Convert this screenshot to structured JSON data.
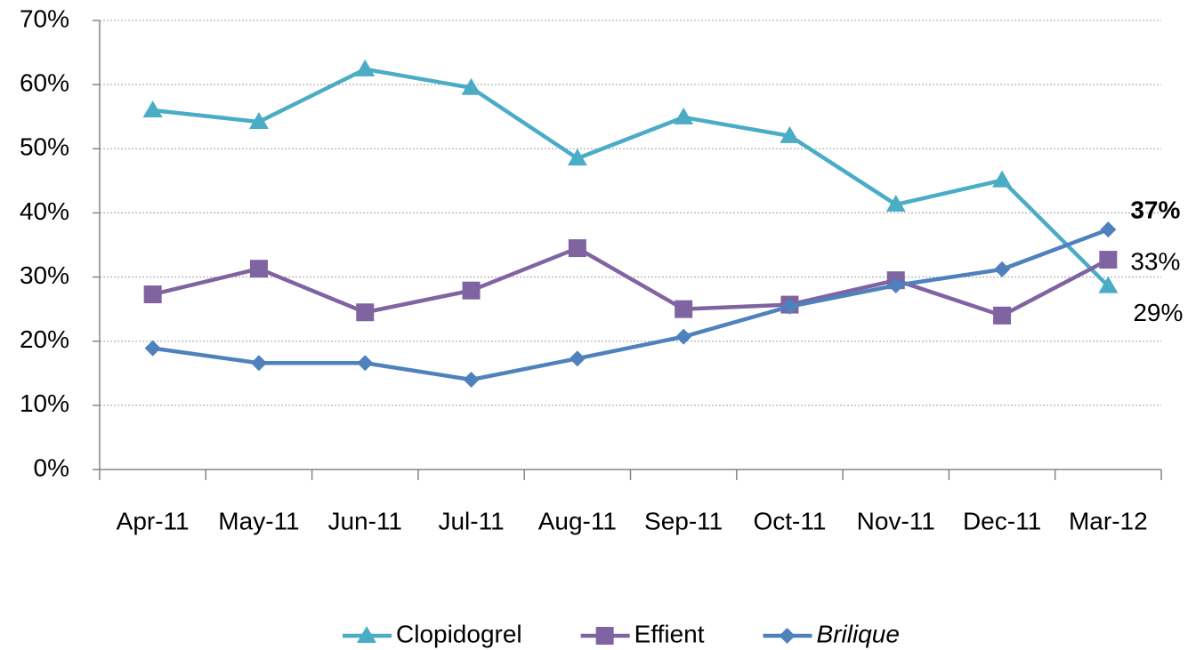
{
  "chart_data": {
    "type": "line",
    "categories": [
      "Apr-11",
      "May-11",
      "Jun-11",
      "Jul-11",
      "Aug-11",
      "Sep-11",
      "Oct-11",
      "Nov-11",
      "Dec-11",
      "Mar-12"
    ],
    "series": [
      {
        "name": "Clopidogrel",
        "color": "#4bacc6",
        "marker": "triangle",
        "values": [
          56.0,
          54.2,
          62.4,
          59.5,
          48.5,
          54.9,
          52.0,
          41.3,
          45.1,
          28.6
        ],
        "value_labels": [
          null,
          null,
          null,
          null,
          null,
          null,
          null,
          null,
          null,
          "29%"
        ]
      },
      {
        "name": "Effient",
        "color": "#8064a2",
        "marker": "square",
        "values": [
          27.3,
          31.3,
          24.5,
          27.9,
          34.5,
          25.0,
          25.7,
          29.5,
          24.0,
          32.7
        ],
        "value_labels": [
          null,
          null,
          null,
          null,
          null,
          null,
          null,
          null,
          null,
          "33%"
        ]
      },
      {
        "name": "Brilique",
        "color": "#4f81bd",
        "marker": "diamond",
        "values": [
          18.9,
          16.6,
          16.6,
          14.0,
          17.3,
          20.7,
          25.4,
          28.7,
          31.2,
          37.4
        ],
        "value_labels": [
          null,
          null,
          null,
          null,
          null,
          null,
          null,
          null,
          null,
          "37%"
        ]
      }
    ],
    "ylim": [
      0,
      70
    ],
    "yticks": [
      {
        "value": 0,
        "label": "0%"
      },
      {
        "value": 10,
        "label": "10%"
      },
      {
        "value": 20,
        "label": "20%"
      },
      {
        "value": 30,
        "label": "30%"
      },
      {
        "value": 40,
        "label": "40%"
      },
      {
        "value": 50,
        "label": "50%"
      },
      {
        "value": 60,
        "label": "60%"
      },
      {
        "value": 70,
        "label": "70%"
      }
    ],
    "grid": true,
    "legend": "bottom"
  }
}
